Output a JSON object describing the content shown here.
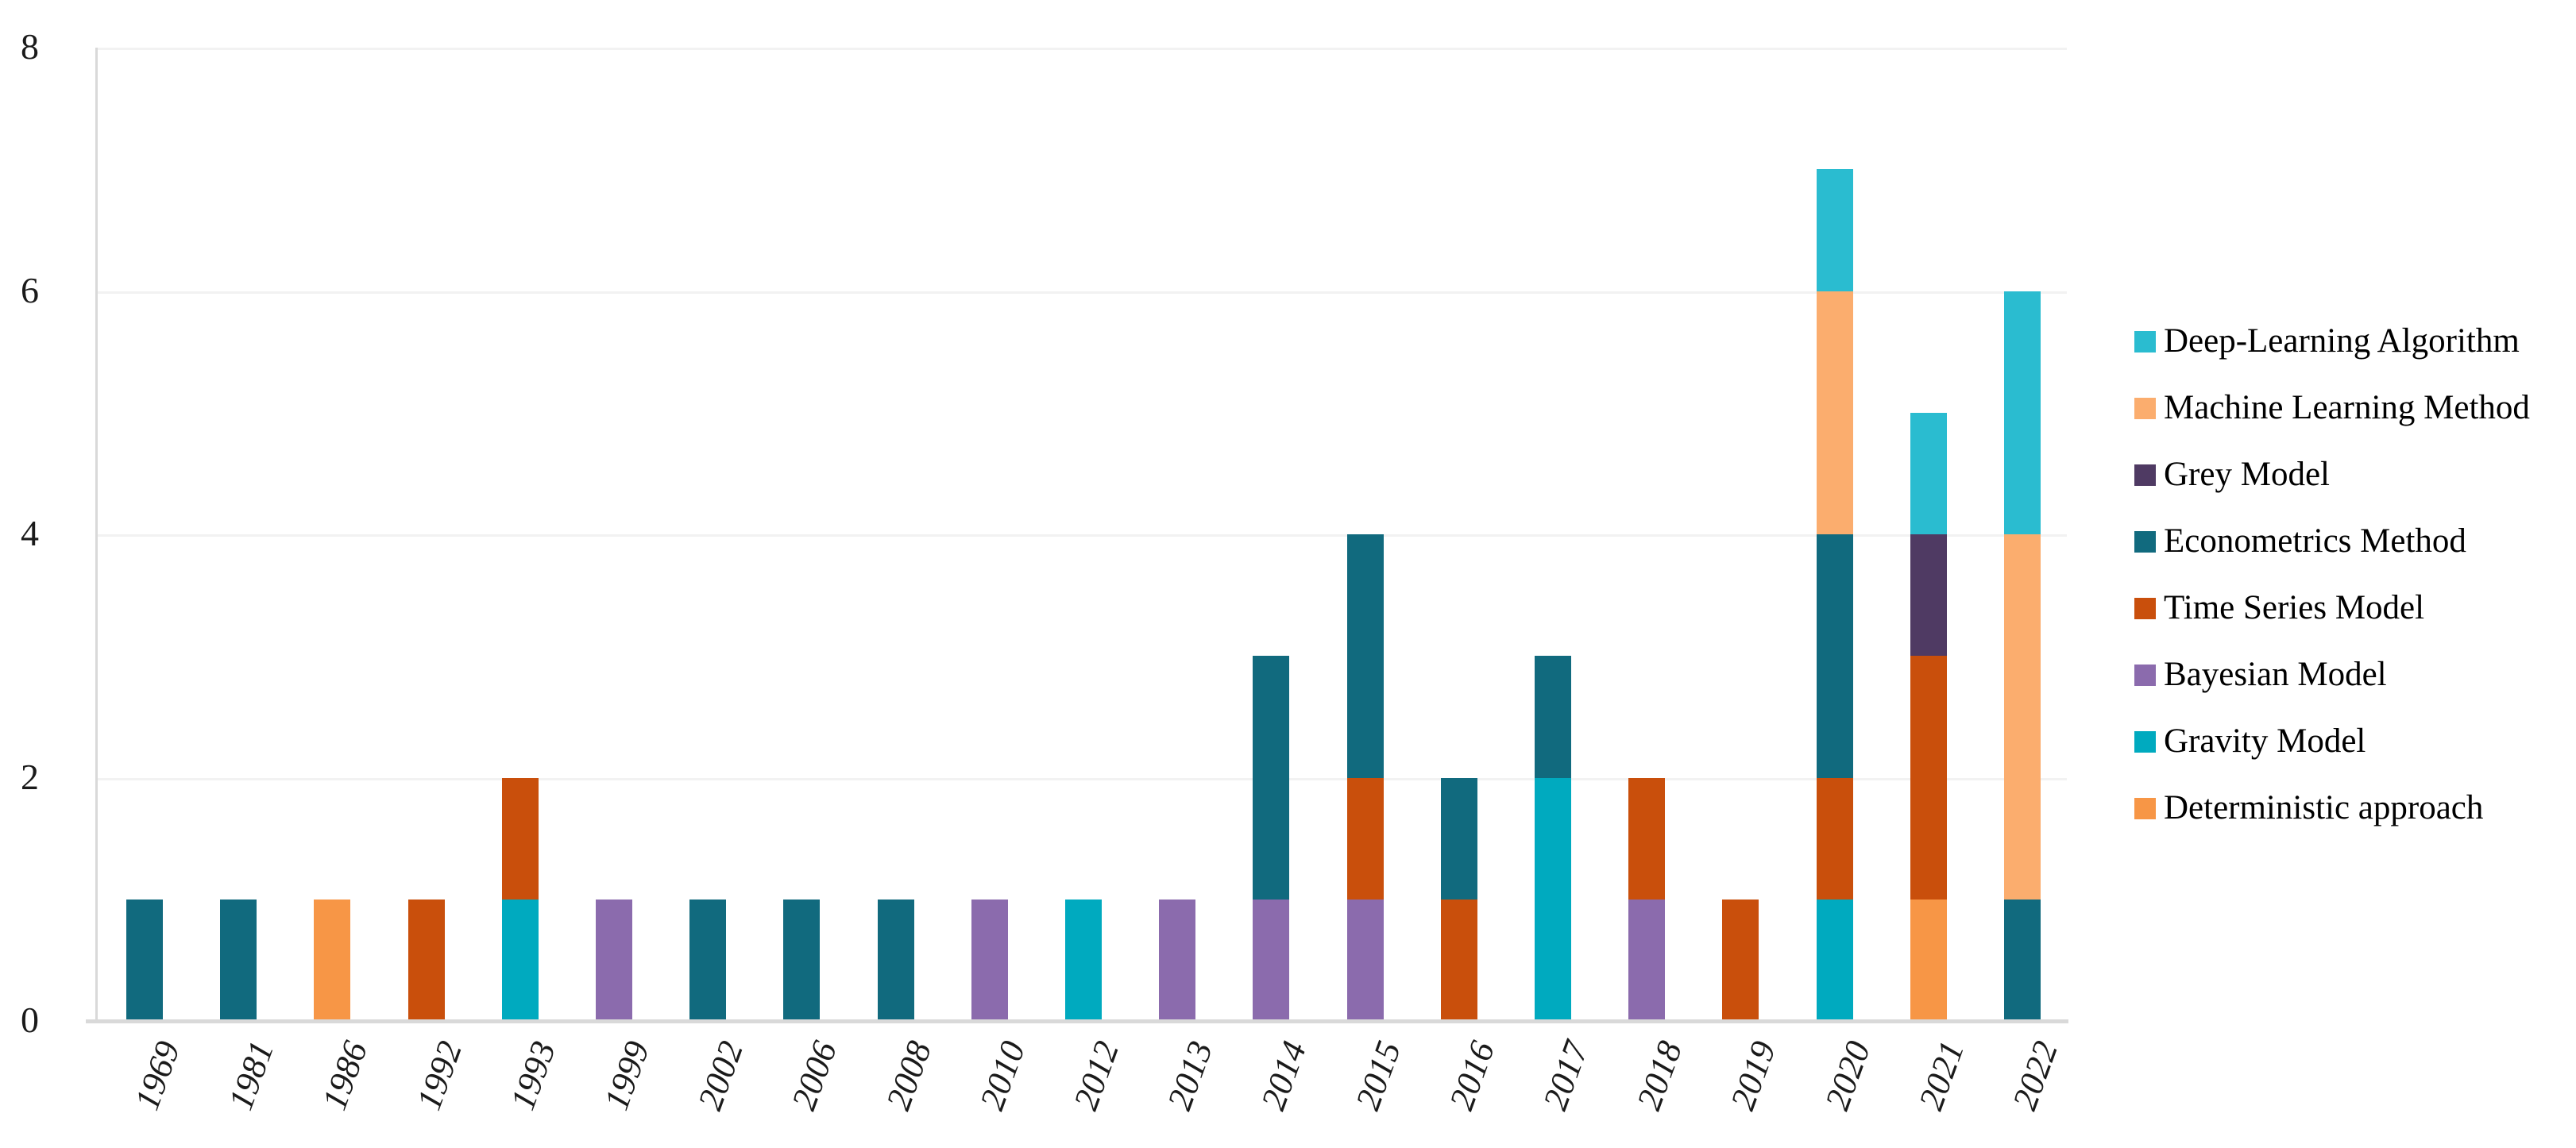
{
  "chart_data": {
    "type": "bar",
    "stacked": true,
    "title": "",
    "xlabel": "",
    "ylabel": "",
    "categories": [
      "1969",
      "1981",
      "1986",
      "1992",
      "1993",
      "1999",
      "2002",
      "2006",
      "2008",
      "2010",
      "2012",
      "2013",
      "2014",
      "2015",
      "2016",
      "2017",
      "2018",
      "2019",
      "2020",
      "2021",
      "2022"
    ],
    "series": [
      {
        "name": "Deep-Learning Algorithm",
        "color": "#2ABCD0",
        "values": [
          0,
          0,
          0,
          0,
          0,
          0,
          0,
          0,
          0,
          0,
          0,
          0,
          0,
          0,
          0,
          0,
          0,
          0,
          1,
          1,
          2
        ]
      },
      {
        "name": "Machine Learning Method",
        "color": "#FBAD6E",
        "values": [
          0,
          0,
          0,
          0,
          0,
          0,
          0,
          0,
          0,
          0,
          0,
          0,
          0,
          0,
          0,
          0,
          0,
          0,
          2,
          0,
          3
        ]
      },
      {
        "name": "Grey Model",
        "color": "#4F3A63",
        "values": [
          0,
          0,
          0,
          0,
          0,
          0,
          0,
          0,
          0,
          0,
          0,
          0,
          0,
          0,
          0,
          0,
          0,
          0,
          0,
          1,
          0
        ]
      },
      {
        "name": "Econometrics Method",
        "color": "#116A7E",
        "values": [
          1,
          1,
          0,
          0,
          0,
          0,
          1,
          1,
          1,
          0,
          0,
          0,
          2,
          2,
          1,
          1,
          0,
          0,
          2,
          0,
          1
        ]
      },
      {
        "name": "Time Series Model",
        "color": "#C94F0C",
        "values": [
          0,
          0,
          0,
          1,
          1,
          0,
          0,
          0,
          0,
          0,
          0,
          0,
          0,
          1,
          1,
          0,
          1,
          1,
          1,
          2,
          0
        ]
      },
      {
        "name": "Bayesian Model",
        "color": "#8B6BAD",
        "values": [
          0,
          0,
          0,
          0,
          0,
          1,
          0,
          0,
          0,
          1,
          0,
          1,
          1,
          1,
          0,
          0,
          1,
          0,
          0,
          0,
          0
        ]
      },
      {
        "name": "Gravity Model",
        "color": "#00AABF",
        "values": [
          0,
          0,
          0,
          0,
          1,
          0,
          0,
          0,
          0,
          0,
          1,
          0,
          0,
          0,
          0,
          2,
          0,
          0,
          1,
          0,
          0
        ]
      },
      {
        "name": "Deterministic approach",
        "color": "#F79646",
        "values": [
          0,
          0,
          1,
          0,
          0,
          0,
          0,
          0,
          0,
          0,
          0,
          0,
          0,
          0,
          0,
          0,
          0,
          0,
          0,
          1,
          0
        ]
      }
    ],
    "totals_by_category": [
      1,
      1,
      1,
      1,
      2,
      1,
      1,
      1,
      1,
      1,
      1,
      1,
      3,
      4,
      2,
      3,
      2,
      1,
      7,
      5,
      6
    ],
    "ylim": [
      0,
      8
    ],
    "yticks": [
      "0",
      "2",
      "4",
      "6",
      "8"
    ],
    "grid": "horizontal",
    "legend_position": "right",
    "note": "Stacking order bottom-to-top is the reverse of the legend order (Deterministic approach at bottom, Deep-Learning Algorithm on top)."
  },
  "colors": {
    "axis_line": "#D9D9D9",
    "gridline": "#F2F2F2",
    "text": "#1A1A1A",
    "background": "#FFFFFF"
  }
}
